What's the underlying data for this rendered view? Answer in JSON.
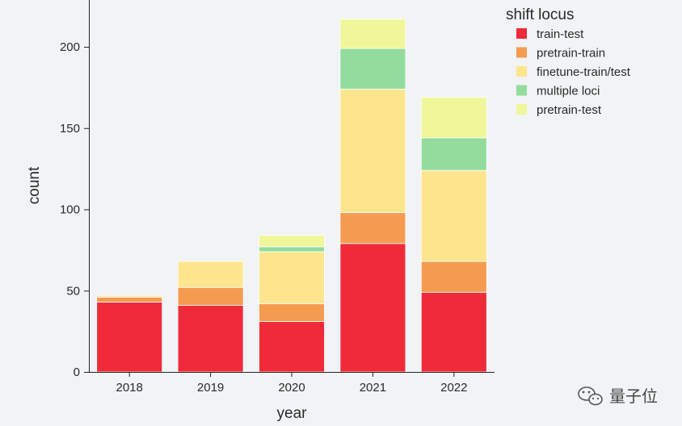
{
  "chart_data": {
    "type": "bar",
    "stacked": true,
    "categories": [
      "2018",
      "2019",
      "2020",
      "2021",
      "2022"
    ],
    "series": [
      {
        "name": "train-test",
        "color": "#ef2b3a",
        "values": [
          43,
          41,
          31,
          79,
          49
        ]
      },
      {
        "name": "pretrain-train",
        "color": "#f59b50",
        "values": [
          3,
          11,
          11,
          19,
          19
        ]
      },
      {
        "name": "finetune-train/test",
        "color": "#fde58e",
        "values": [
          1,
          16,
          32,
          76,
          56
        ]
      },
      {
        "name": "multiple loci",
        "color": "#93dc9d",
        "values": [
          0,
          0,
          3,
          25,
          20
        ]
      },
      {
        "name": "pretrain-test",
        "color": "#eff79a",
        "values": [
          0,
          0,
          7,
          18,
          25
        ]
      }
    ],
    "xlabel": "year",
    "ylabel": "count",
    "ylim": [
      0,
      226
    ],
    "yticks": [
      0,
      50,
      100,
      150,
      200
    ],
    "legend_title": "shift locus",
    "legend_position": "top-right"
  },
  "watermark": {
    "text": "量子位"
  }
}
